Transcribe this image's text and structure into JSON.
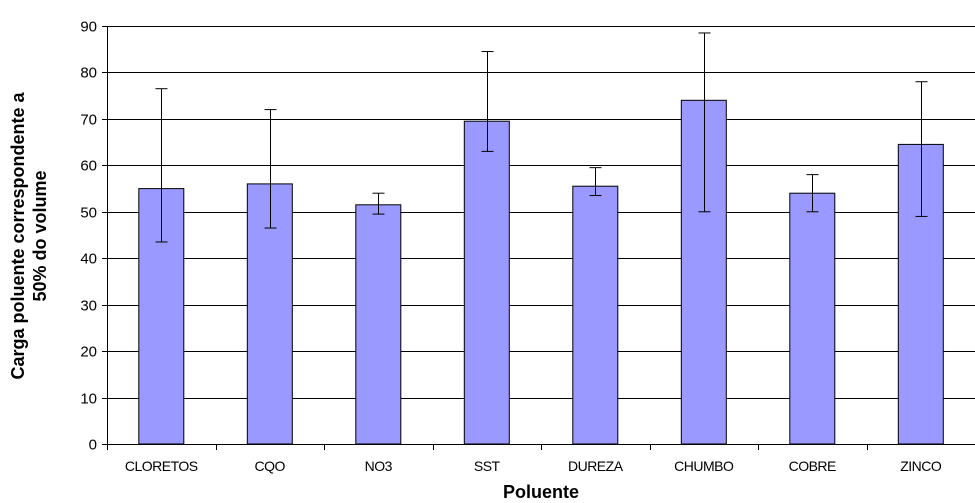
{
  "chart_data": {
    "type": "bar",
    "title": "",
    "xlabel": "Poluente",
    "ylabel_line1": "Carga poluente correspondente a",
    "ylabel_line2": "50% do volume",
    "ylim": [
      0,
      90
    ],
    "yticks": [
      0,
      10,
      20,
      30,
      40,
      50,
      60,
      70,
      80,
      90
    ],
    "grid": true,
    "categories": [
      "CLORETOS",
      "CQO",
      "NO3",
      "SST",
      "DUREZA",
      "CHUMBO",
      "COBRE",
      "ZINCO"
    ],
    "values": [
      55,
      56,
      51.5,
      69.5,
      55.5,
      74,
      54,
      64.5
    ],
    "error_low": [
      43.5,
      46.5,
      49.5,
      63,
      53.5,
      50,
      50,
      49
    ],
    "error_high": [
      76.5,
      72,
      54,
      84.5,
      59.5,
      88.5,
      58,
      78
    ],
    "colors": {
      "bar": "#9999FF",
      "outline": "#000000",
      "grid": "#000000"
    }
  }
}
